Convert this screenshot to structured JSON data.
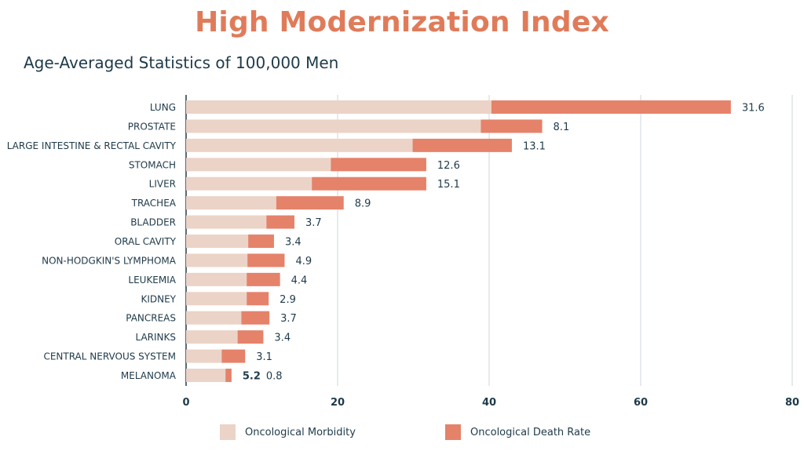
{
  "chart_data": {
    "type": "bar",
    "orientation": "horizontal",
    "stacked": true,
    "title": "High Modernization Index",
    "subtitle": "Age-Averaged Statistics of 100,000 Men",
    "categories": [
      "LUNG",
      "PROSTATE",
      "LARGE INTESTINE & RECTAL CAVITY",
      "STOMACH",
      "LIVER",
      "TRACHEA",
      "BLADDER",
      "ORAL CAVITY",
      "NON-HODGKIN'S LYMPHOMA",
      "LEUKEMIA",
      "KIDNEY",
      "PANCREAS",
      "LARINKS",
      "CENTRAL NERVOUS SYSTEM",
      "MELANOMA"
    ],
    "series": [
      {
        "name": "Oncological Morbidity",
        "color": "#ecd3c7",
        "values": [
          40.3,
          38.9,
          29.9,
          19.1,
          16.6,
          11.9,
          10.6,
          8.2,
          8.1,
          8.0,
          8.0,
          7.3,
          6.8,
          4.7,
          5.2
        ]
      },
      {
        "name": "Oncological Death Rate",
        "color": "#e5826a",
        "values": [
          31.6,
          8.1,
          13.1,
          12.6,
          15.1,
          8.9,
          3.7,
          3.4,
          4.9,
          4.4,
          2.9,
          3.7,
          3.4,
          3.1,
          0.8
        ]
      }
    ],
    "value_labels": [
      "31.6",
      "8.1",
      "13.1",
      "12.6",
      "15.1",
      "8.9",
      "3.7",
      "3.4",
      "4.9",
      "4.4",
      "2.9",
      "3.7",
      "3.4",
      "3.1",
      "0.8"
    ],
    "highlight_labels": [
      {
        "category": "MELANOMA",
        "text": "5.2"
      }
    ],
    "xlim": [
      0,
      80
    ],
    "xticks": [
      0,
      20,
      40,
      60,
      80
    ],
    "grid": true,
    "legend": "bottom"
  }
}
